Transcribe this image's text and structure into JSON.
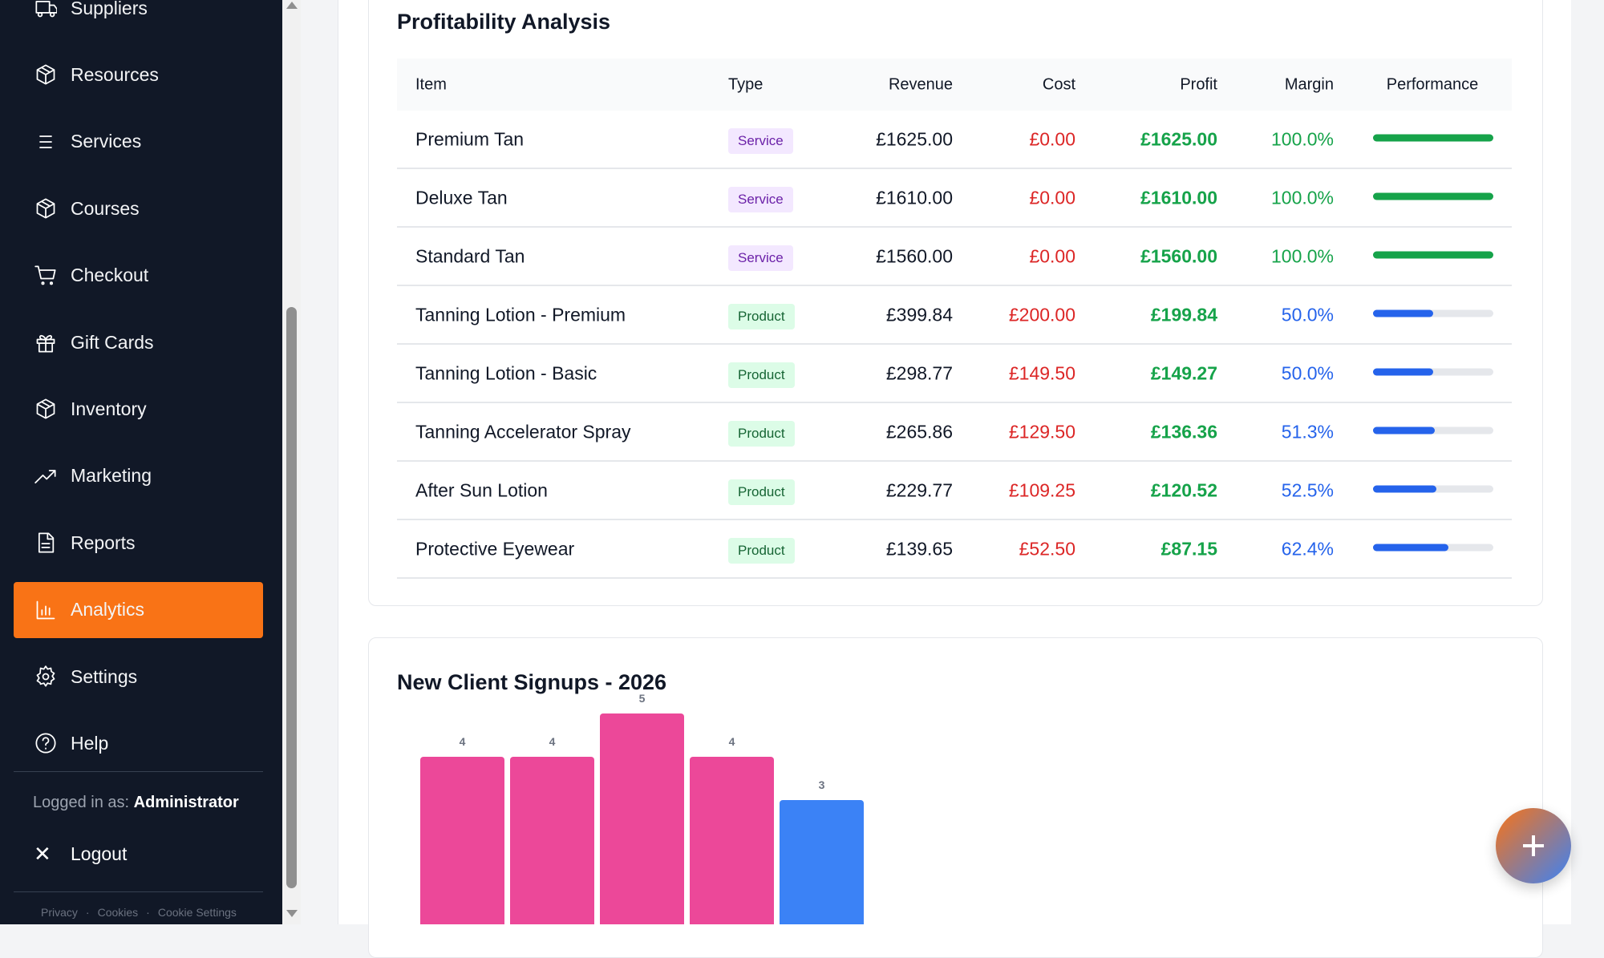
{
  "sidebar": {
    "items": [
      {
        "label": "Suppliers",
        "icon": "truck-icon"
      },
      {
        "label": "Resources",
        "icon": "box-icon"
      },
      {
        "label": "Services",
        "icon": "list-icon"
      },
      {
        "label": "Courses",
        "icon": "box-icon"
      },
      {
        "label": "Checkout",
        "icon": "cart-icon"
      },
      {
        "label": "Gift Cards",
        "icon": "gift-icon"
      },
      {
        "label": "Inventory",
        "icon": "box-icon"
      },
      {
        "label": "Marketing",
        "icon": "trending-up-icon"
      },
      {
        "label": "Reports",
        "icon": "file-icon"
      },
      {
        "label": "Analytics",
        "icon": "bar-chart-icon",
        "active": true
      },
      {
        "label": "Settings",
        "icon": "gear-icon"
      },
      {
        "label": "Help",
        "icon": "help-circle-icon"
      }
    ],
    "logged_in_label": "Logged in as:",
    "user": "Administrator",
    "logout": "Logout",
    "footer": [
      "Privacy",
      "Cookies",
      "Cookie Settings"
    ],
    "accent": "#f97316"
  },
  "profitability": {
    "title": "Profitability Analysis",
    "columns": [
      "Item",
      "Type",
      "Revenue",
      "Cost",
      "Profit",
      "Margin",
      "Performance"
    ],
    "rows": [
      {
        "item": "Premium Tan",
        "type": "Service",
        "revenue": "£1625.00",
        "cost": "£0.00",
        "profit": "£1625.00",
        "margin": "100.0%",
        "performance": 100
      },
      {
        "item": "Deluxe Tan",
        "type": "Service",
        "revenue": "£1610.00",
        "cost": "£0.00",
        "profit": "£1610.00",
        "margin": "100.0%",
        "performance": 100
      },
      {
        "item": "Standard Tan",
        "type": "Service",
        "revenue": "£1560.00",
        "cost": "£0.00",
        "profit": "£1560.00",
        "margin": "100.0%",
        "performance": 100
      },
      {
        "item": "Tanning Lotion - Premium",
        "type": "Product",
        "revenue": "£399.84",
        "cost": "£200.00",
        "profit": "£199.84",
        "margin": "50.0%",
        "performance": 50
      },
      {
        "item": "Tanning Lotion - Basic",
        "type": "Product",
        "revenue": "£298.77",
        "cost": "£149.50",
        "profit": "£149.27",
        "margin": "50.0%",
        "performance": 50
      },
      {
        "item": "Tanning Accelerator Spray",
        "type": "Product",
        "revenue": "£265.86",
        "cost": "£129.50",
        "profit": "£136.36",
        "margin": "51.3%",
        "performance": 51.3
      },
      {
        "item": "After Sun Lotion",
        "type": "Product",
        "revenue": "£229.77",
        "cost": "£109.25",
        "profit": "£120.52",
        "margin": "52.5%",
        "performance": 52.5
      },
      {
        "item": "Protective Eyewear",
        "type": "Product",
        "revenue": "£139.65",
        "cost": "£52.50",
        "profit": "£87.15",
        "margin": "62.4%",
        "performance": 62.4
      }
    ]
  },
  "chart_data": {
    "type": "bar",
    "title": "New Client Signups - 2026",
    "values": [
      4,
      4,
      5,
      4,
      3
    ],
    "colors": [
      "#ec4899",
      "#ec4899",
      "#ec4899",
      "#ec4899",
      "#3b82f6"
    ]
  },
  "fab": {
    "icon": "plus-icon"
  }
}
